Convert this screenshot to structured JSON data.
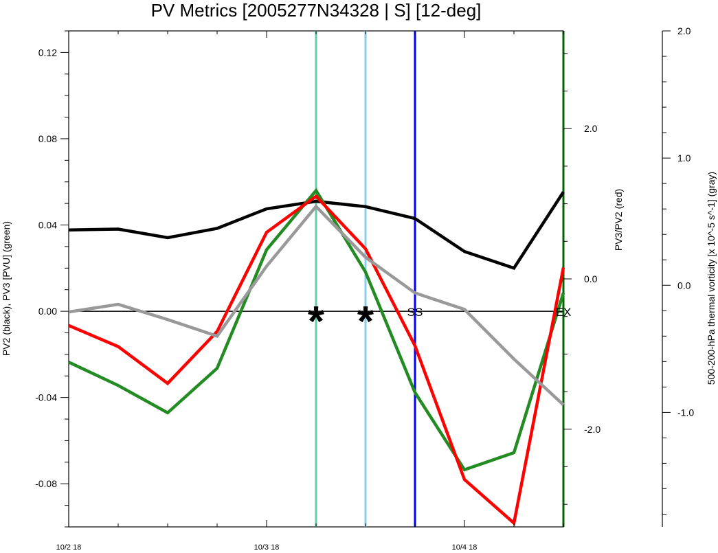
{
  "chart_data": {
    "type": "line",
    "title": "PV Metrics [2005277N34328 | S] [12-deg]",
    "x_ticks": [
      "10/2 18",
      "10/3 18",
      "10/4 18"
    ],
    "x_tick_positions": [
      0,
      8,
      16
    ],
    "xlim": [
      0,
      20
    ],
    "left_axis": {
      "label": "PV2 (black), PV3 [PVU] (green)",
      "ylim": [
        -0.1,
        0.13
      ],
      "ticks": [
        "0.12",
        "0.08",
        "0.04",
        "0.00",
        "-0.04",
        "-0.08"
      ],
      "tick_values": [
        0.12,
        0.08,
        0.04,
        0.0,
        -0.04,
        -0.08
      ]
    },
    "right_axis": {
      "label": "PV3/PV2 (red)",
      "ylim": [
        -3.3,
        3.3
      ],
      "ticks": [
        "2.0",
        "0.0",
        "-2.0"
      ],
      "tick_values": [
        2.0,
        0.0,
        -2.0
      ]
    },
    "far_right_axis": {
      "label": "500-200-hPa thermal vorticity [x 10^-5 s^-1] (gray)",
      "ylim": [
        -1.9,
        2.0
      ],
      "ticks": [
        "2.0",
        "1.0",
        "0.0",
        "-1.0"
      ],
      "tick_values": [
        2.0,
        1.0,
        0.0,
        -1.0
      ]
    },
    "series": [
      {
        "axis": "left",
        "color": "#000000",
        "x": [
          0,
          2,
          4,
          6,
          8,
          10,
          12,
          14,
          16,
          18,
          20
        ],
        "values": [
          0.0377,
          0.0381,
          0.0341,
          0.0384,
          0.0475,
          0.051,
          0.0485,
          0.043,
          0.0277,
          0.02,
          0.0553
        ]
      },
      {
        "axis": "left",
        "color": "#228b22",
        "x": [
          0,
          2,
          4,
          6,
          8,
          10,
          12,
          14,
          16,
          18,
          20
        ],
        "values": [
          -0.0236,
          -0.0344,
          -0.0471,
          -0.0264,
          0.0285,
          0.056,
          0.0182,
          -0.0377,
          -0.0735,
          -0.0656,
          0.0085
        ]
      },
      {
        "axis": "right",
        "color": "#ff0000",
        "x": [
          0,
          2,
          4,
          6,
          8,
          10,
          12,
          14,
          16,
          18,
          20
        ],
        "values": [
          -0.62,
          -0.9,
          -1.39,
          -0.7,
          0.62,
          1.1,
          0.4,
          -0.89,
          -2.67,
          -3.25,
          0.15
        ]
      },
      {
        "axis": "far_right",
        "color": "#999999",
        "x": [
          0,
          2,
          4,
          6,
          8,
          10,
          12,
          14,
          16,
          18,
          20
        ],
        "values": [
          -0.21,
          -0.15,
          -0.27,
          -0.4,
          0.15,
          0.62,
          0.22,
          -0.06,
          -0.19,
          -0.58,
          -0.94
        ]
      }
    ],
    "zero_line": {
      "axis": "left",
      "value": 0.0
    },
    "vertical_lines": [
      {
        "x": 10,
        "color": "#66cdaa"
      },
      {
        "x": 12,
        "color": "#87ceeb"
      },
      {
        "x": 14,
        "color": "#0000ff"
      },
      {
        "x": 20,
        "color": "#006400"
      }
    ],
    "markers": [
      {
        "x": 10,
        "label": "*",
        "kind": "star"
      },
      {
        "x": 12,
        "label": "*",
        "kind": "star"
      },
      {
        "x": 14,
        "label": "SS",
        "kind": "text"
      },
      {
        "x": 20,
        "label": "EX",
        "kind": "text"
      }
    ]
  }
}
